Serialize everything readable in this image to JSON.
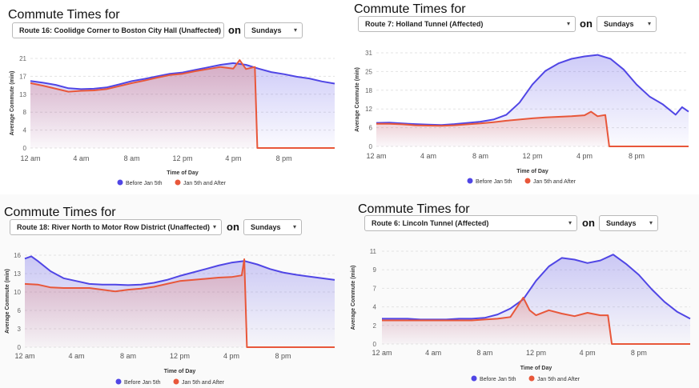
{
  "colors": {
    "before": "#5046e5",
    "after": "#e8573a",
    "grid": "#e3e3e3"
  },
  "chart_data": [
    {
      "type": "area",
      "title": "Commute Times for",
      "route_label": "Route 16: Coolidge Corner to Boston City Hall (Unaffected)",
      "connector": "on",
      "day_label": "Sundays",
      "xlabel": "Time of Day",
      "ylabel": "Average Commute (min)",
      "ylim": [
        0,
        21
      ],
      "yticks": [
        "0",
        "4",
        "8",
        "13",
        "17",
        "21"
      ],
      "xticks": [
        "12 am",
        "4 am",
        "8 am",
        "12 pm",
        "4 pm",
        "8 pm"
      ],
      "x_hours_range": [
        0,
        24
      ],
      "series": [
        {
          "name": "Before Jan 5th",
          "points": [
            [
              0,
              15.7
            ],
            [
              1,
              15.3
            ],
            [
              2,
              14.8
            ],
            [
              3,
              14.0
            ],
            [
              4,
              13.8
            ],
            [
              5,
              13.9
            ],
            [
              6,
              14.2
            ],
            [
              7,
              14.9
            ],
            [
              8,
              15.7
            ],
            [
              9,
              16.2
            ],
            [
              10,
              16.8
            ],
            [
              11,
              17.4
            ],
            [
              12,
              17.7
            ],
            [
              13,
              18.3
            ],
            [
              14,
              18.9
            ],
            [
              15,
              19.5
            ],
            [
              16,
              19.9
            ],
            [
              17,
              19.5
            ],
            [
              18,
              18.6
            ],
            [
              19,
              17.8
            ],
            [
              20,
              17.3
            ],
            [
              21,
              16.7
            ],
            [
              22,
              16.3
            ],
            [
              23,
              15.6
            ],
            [
              24,
              15.1
            ]
          ]
        },
        {
          "name": "Jan 5th and After",
          "points": [
            [
              0,
              15.2
            ],
            [
              1,
              14.6
            ],
            [
              2,
              13.9
            ],
            [
              3,
              13.2
            ],
            [
              4,
              13.4
            ],
            [
              5,
              13.5
            ],
            [
              6,
              13.8
            ],
            [
              7,
              14.5
            ],
            [
              8,
              15.2
            ],
            [
              9,
              15.8
            ],
            [
              10,
              16.5
            ],
            [
              11,
              17.1
            ],
            [
              12,
              17.4
            ],
            [
              13,
              18.0
            ],
            [
              14,
              18.5
            ],
            [
              15,
              19.0
            ],
            [
              16,
              18.6
            ],
            [
              16.5,
              20.6
            ],
            [
              17,
              18.5
            ],
            [
              17.7,
              19.0
            ],
            [
              17.9,
              0
            ],
            [
              18,
              0
            ],
            [
              20,
              0
            ],
            [
              22,
              0
            ],
            [
              24,
              0
            ]
          ]
        }
      ]
    },
    {
      "type": "area",
      "title": "Commute Times for",
      "route_label": "Route 7: Holland Tunnel (Affected)",
      "connector": "on",
      "day_label": "Sundays",
      "xlabel": "Time of Day",
      "ylabel": "Average Commute (min)",
      "ylim": [
        0,
        31
      ],
      "yticks": [
        "0",
        "6",
        "12",
        "18",
        "25",
        "31"
      ],
      "xticks": [
        "12 am",
        "4 am",
        "8 am",
        "12 pm",
        "4 pm",
        "8 pm"
      ],
      "x_hours_range": [
        0,
        24
      ],
      "series": [
        {
          "name": "Before Jan 5th",
          "points": [
            [
              0,
              7.8
            ],
            [
              1,
              7.9
            ],
            [
              2,
              7.6
            ],
            [
              3,
              7.4
            ],
            [
              4,
              7.2
            ],
            [
              5,
              7.1
            ],
            [
              6,
              7.4
            ],
            [
              7,
              7.8
            ],
            [
              8,
              8.2
            ],
            [
              9,
              8.9
            ],
            [
              10,
              10.5
            ],
            [
              11,
              14.5
            ],
            [
              12,
              20.5
            ],
            [
              13,
              25.0
            ],
            [
              14,
              27.5
            ],
            [
              15,
              29.0
            ],
            [
              16,
              29.8
            ],
            [
              17,
              30.3
            ],
            [
              18,
              29.0
            ],
            [
              19,
              25.5
            ],
            [
              20,
              20.5
            ],
            [
              21,
              16.5
            ],
            [
              22,
              14.0
            ],
            [
              23,
              10.5
            ],
            [
              23.5,
              13.0
            ],
            [
              24,
              11.5
            ]
          ]
        },
        {
          "name": "Jan 5th and After",
          "points": [
            [
              0,
              7.5
            ],
            [
              1,
              7.5
            ],
            [
              2,
              7.3
            ],
            [
              3,
              7.0
            ],
            [
              4,
              6.9
            ],
            [
              5,
              6.8
            ],
            [
              6,
              7.0
            ],
            [
              7,
              7.3
            ],
            [
              8,
              7.6
            ],
            [
              9,
              8.0
            ],
            [
              10,
              8.5
            ],
            [
              11,
              8.9
            ],
            [
              12,
              9.3
            ],
            [
              13,
              9.6
            ],
            [
              14,
              9.8
            ],
            [
              15,
              10.0
            ],
            [
              16,
              10.3
            ],
            [
              16.5,
              11.5
            ],
            [
              17,
              10.0
            ],
            [
              17.6,
              10.4
            ],
            [
              17.9,
              0
            ],
            [
              18,
              0
            ],
            [
              20,
              0
            ],
            [
              22,
              0
            ],
            [
              24,
              0
            ]
          ]
        }
      ]
    },
    {
      "type": "area",
      "title": "Commute Times for",
      "route_label": "Route 18: River North to Motor Row District (Unaffected)",
      "connector": "on",
      "day_label": "Sundays",
      "xlabel": "Time of Day",
      "ylabel": "Average Commute (min)",
      "ylim": [
        0,
        16
      ],
      "yticks": [
        "0",
        "3",
        "6",
        "10",
        "13",
        "16"
      ],
      "xticks": [
        "12 am",
        "4 am",
        "8 am",
        "12 pm",
        "4 pm",
        "8 pm"
      ],
      "x_hours_range": [
        0,
        24
      ],
      "series": [
        {
          "name": "Before Jan 5th",
          "points": [
            [
              0,
              15.4
            ],
            [
              0.5,
              15.8
            ],
            [
              1,
              15.0
            ],
            [
              2,
              13.2
            ],
            [
              3,
              12.0
            ],
            [
              4,
              11.5
            ],
            [
              5,
              11.0
            ],
            [
              6,
              10.9
            ],
            [
              7,
              10.9
            ],
            [
              8,
              10.8
            ],
            [
              9,
              10.9
            ],
            [
              10,
              11.2
            ],
            [
              11,
              11.7
            ],
            [
              12,
              12.4
            ],
            [
              13,
              13.0
            ],
            [
              14,
              13.6
            ],
            [
              15,
              14.2
            ],
            [
              16,
              14.7
            ],
            [
              17,
              15.0
            ],
            [
              18,
              14.4
            ],
            [
              19,
              13.6
            ],
            [
              20,
              13.0
            ],
            [
              21,
              12.6
            ],
            [
              22,
              12.3
            ],
            [
              23,
              12.0
            ],
            [
              24,
              11.7
            ]
          ]
        },
        {
          "name": "Jan 5th and After",
          "points": [
            [
              0,
              11.0
            ],
            [
              1,
              10.9
            ],
            [
              2,
              10.4
            ],
            [
              3,
              10.3
            ],
            [
              4,
              10.3
            ],
            [
              5,
              10.3
            ],
            [
              6,
              10.0
            ],
            [
              7,
              9.7
            ],
            [
              8,
              10.0
            ],
            [
              9,
              10.2
            ],
            [
              10,
              10.5
            ],
            [
              11,
              11.0
            ],
            [
              12,
              11.5
            ],
            [
              13,
              11.7
            ],
            [
              14,
              11.9
            ],
            [
              15,
              12.1
            ],
            [
              16,
              12.2
            ],
            [
              16.8,
              12.5
            ],
            [
              17.0,
              15.3
            ],
            [
              17.2,
              0
            ],
            [
              18,
              0
            ],
            [
              20,
              0
            ],
            [
              22,
              0
            ],
            [
              24,
              0
            ]
          ]
        }
      ]
    },
    {
      "type": "area",
      "title": "Commute Times for",
      "route_label": "Route 6: Lincoln Tunnel (Affected)",
      "connector": "on",
      "day_label": "Sundays",
      "xlabel": "Time of Day",
      "ylabel": "Average Commute (min)",
      "ylim": [
        0,
        11
      ],
      "yticks": [
        "0",
        "2",
        "4",
        "7",
        "9",
        "11"
      ],
      "xticks": [
        "12 am",
        "4 am",
        "8 am",
        "12 pm",
        "4 pm",
        "8 pm"
      ],
      "x_hours_range": [
        0,
        24
      ],
      "series": [
        {
          "name": "Before Jan 5th",
          "points": [
            [
              0,
              3.0
            ],
            [
              1,
              3.0
            ],
            [
              2,
              3.0
            ],
            [
              3,
              2.9
            ],
            [
              4,
              2.9
            ],
            [
              5,
              2.9
            ],
            [
              6,
              3.0
            ],
            [
              7,
              3.0
            ],
            [
              8,
              3.1
            ],
            [
              9,
              3.5
            ],
            [
              10,
              4.2
            ],
            [
              11,
              5.3
            ],
            [
              12,
              7.5
            ],
            [
              13,
              9.2
            ],
            [
              14,
              10.2
            ],
            [
              15,
              10.0
            ],
            [
              16,
              9.6
            ],
            [
              17,
              9.9
            ],
            [
              18,
              10.6
            ],
            [
              19,
              9.5
            ],
            [
              20,
              8.2
            ],
            [
              21,
              6.5
            ],
            [
              22,
              5.0
            ],
            [
              23,
              3.8
            ],
            [
              24,
              3.0
            ]
          ]
        },
        {
          "name": "Jan 5th and After",
          "points": [
            [
              0,
              2.8
            ],
            [
              1,
              2.8
            ],
            [
              2,
              2.8
            ],
            [
              3,
              2.8
            ],
            [
              4,
              2.8
            ],
            [
              5,
              2.8
            ],
            [
              6,
              2.8
            ],
            [
              7,
              2.8
            ],
            [
              8,
              2.9
            ],
            [
              9,
              3.0
            ],
            [
              10,
              3.2
            ],
            [
              11,
              5.5
            ],
            [
              11.5,
              4.0
            ],
            [
              12,
              3.4
            ],
            [
              13,
              4.0
            ],
            [
              14,
              3.6
            ],
            [
              15,
              3.3
            ],
            [
              16,
              3.7
            ],
            [
              17,
              3.4
            ],
            [
              17.6,
              3.4
            ],
            [
              17.9,
              0
            ],
            [
              18,
              0
            ],
            [
              20,
              0
            ],
            [
              22,
              0
            ],
            [
              24,
              0
            ]
          ]
        }
      ]
    }
  ]
}
